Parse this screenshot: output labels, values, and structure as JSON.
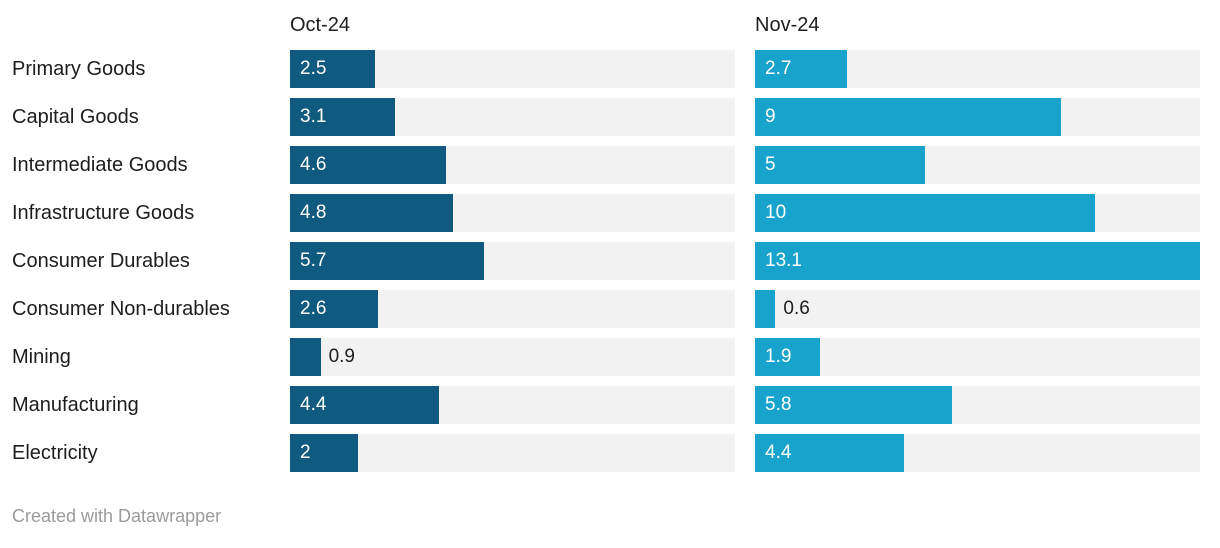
{
  "header": {
    "col1": "Oct-24",
    "col2": "Nov-24"
  },
  "footer": {
    "credit": "Created with Datawrapper"
  },
  "colors": {
    "oct_bar": "#0f5a7e",
    "nov_bar": "#18a3cd",
    "track": "#f2f2f2",
    "category_text": "#1d1d1d",
    "value_inside_text": "#ffffff",
    "value_outside_text": "#1d1d1d",
    "footer_text": "#9b9b9b",
    "background": "#ffffff"
  },
  "chart_data": {
    "type": "bar",
    "orientation": "horizontal",
    "title": "",
    "xlabel": "",
    "ylabel": "",
    "xlim": [
      0,
      13.1
    ],
    "grid": false,
    "legend_position": "column-headers",
    "categories": [
      "Primary Goods",
      "Capital Goods",
      "Intermediate Goods",
      "Infrastructure Goods",
      "Consumer Durables",
      "Consumer Non-durables",
      "Mining",
      "Manufacturing",
      "Electricity"
    ],
    "series": [
      {
        "name": "Oct-24",
        "color": "#0f5a7e",
        "values": [
          2.5,
          3.1,
          4.6,
          4.8,
          5.7,
          2.6,
          0.9,
          4.4,
          2
        ],
        "labels": [
          "2.5",
          "3.1",
          "4.6",
          "4.8",
          "5.7",
          "2.6",
          "0.9",
          "4.4",
          "2"
        ]
      },
      {
        "name": "Nov-24",
        "color": "#18a3cd",
        "values": [
          2.7,
          9,
          5,
          10,
          13.1,
          0.6,
          1.9,
          5.8,
          4.4
        ],
        "labels": [
          "2.7",
          "9",
          "5",
          "10",
          "13.1",
          "0.6",
          "1.9",
          "5.8",
          "4.4"
        ]
      }
    ],
    "annotation": "Created with Datawrapper"
  }
}
